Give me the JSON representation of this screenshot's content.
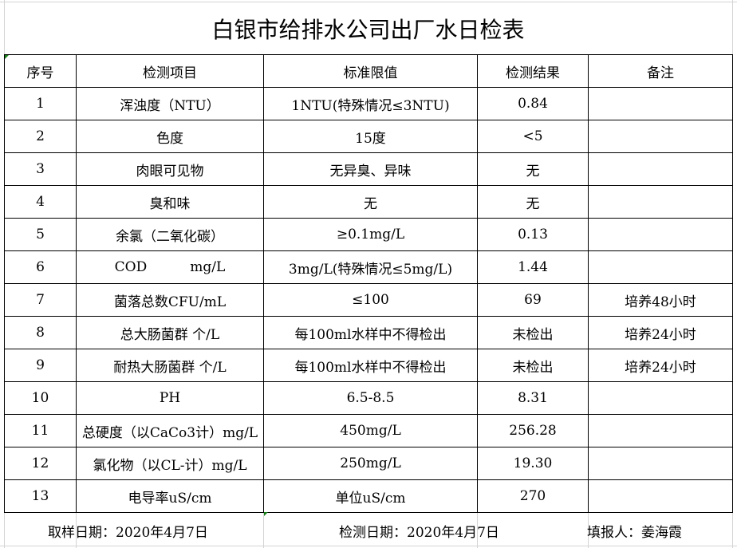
{
  "title": "白银市给排水公司出厂水日检表",
  "headers": [
    "序号",
    "检测项目",
    "标准限值",
    "检测结果",
    "备注"
  ],
  "rows": [
    [
      "1",
      "浑浊度（NTU）",
      "1NTU(特殊情况≤3NTU)",
      "0.84",
      ""
    ],
    [
      "2",
      "色度",
      "15度",
      "<5",
      ""
    ],
    [
      "3",
      "肉眼可见物",
      "无异臭、异味",
      "无",
      ""
    ],
    [
      "4",
      "臭和味",
      "无",
      "无",
      ""
    ],
    [
      "5",
      "余氯（二氧化碳）",
      "≥0.1mg/L",
      "0.13",
      ""
    ],
    [
      "6",
      "COD          mg/L",
      "3mg/L(特殊情况≤5mg/L)",
      "1.44",
      ""
    ],
    [
      "7",
      "菌落总数CFU/mL",
      "≤100",
      "69",
      "培养48小时"
    ],
    [
      "8",
      "总大肠菌群 个/L",
      "每100ml水样中不得检出",
      "未检出",
      "培养24小时"
    ],
    [
      "9",
      "耐热大肠菌群 个/L",
      "每100ml水样中不得检出",
      "未检出",
      "培养24小时"
    ],
    [
      "10",
      "PH",
      "6.5-8.5",
      "8.31",
      ""
    ],
    [
      "11",
      "总硬度（以CaCo3计）mg/L",
      "450mg/L",
      "256.28",
      ""
    ],
    [
      "12",
      "氯化物（以CL-计）mg/L",
      "250mg/L",
      "19.30",
      ""
    ],
    [
      "13",
      "电导率uS/cm",
      "单位uS/cm",
      "270",
      ""
    ]
  ],
  "footer": {
    "sample_date": "取样日期：2020年4月7日",
    "test_date": "检测日期：2020年4月7日",
    "reporter": "填报人：姜海霞"
  }
}
